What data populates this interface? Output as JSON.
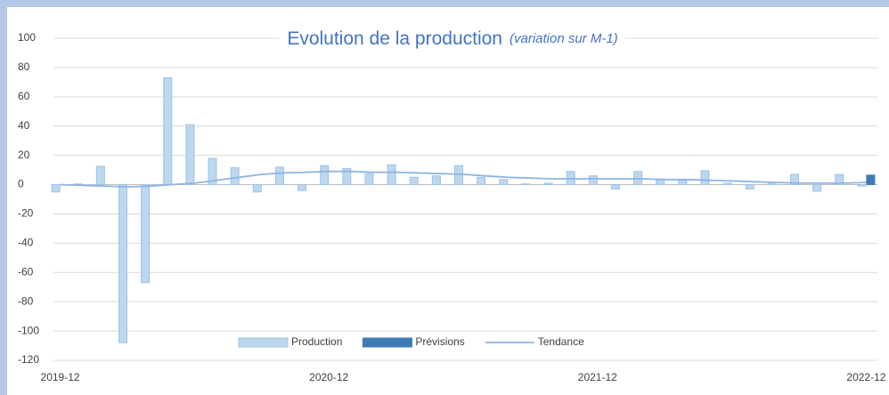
{
  "chart_data": {
    "type": "bar",
    "title": "Evolution de la production",
    "subtitle": "(variation sur M-1)",
    "categories": [
      "2019-12",
      null,
      null,
      null,
      null,
      null,
      null,
      null,
      null,
      null,
      null,
      null,
      "2020-12",
      null,
      null,
      null,
      null,
      null,
      null,
      null,
      null,
      null,
      null,
      null,
      "2021-12",
      null,
      null,
      null,
      null,
      null,
      null,
      null,
      null,
      null,
      null,
      null,
      "2022-12"
    ],
    "series": [
      {
        "name": "Production",
        "type": "bar",
        "color": "#bdd7ee",
        "values": [
          -5,
          0.5,
          12.5,
          -108,
          -67,
          73,
          41,
          18,
          11.5,
          -5,
          12,
          -4,
          13,
          11,
          7.5,
          13.5,
          5,
          6,
          13,
          5,
          3.5,
          0.5,
          1,
          9,
          6,
          -3,
          9,
          3.5,
          3,
          9.5,
          1,
          -3,
          1.5,
          7,
          -4.5,
          7,
          -1
        ]
      },
      {
        "name": "Prévisions",
        "type": "bar",
        "color": "#3f7ab5",
        "values": [
          null,
          null,
          null,
          null,
          null,
          null,
          null,
          null,
          null,
          null,
          null,
          null,
          null,
          null,
          null,
          null,
          null,
          null,
          null,
          null,
          null,
          null,
          null,
          null,
          null,
          null,
          null,
          null,
          null,
          null,
          null,
          null,
          null,
          null,
          null,
          null,
          6.5
        ]
      },
      {
        "name": "Tendance",
        "type": "line",
        "color": "#8eb4e3",
        "values": [
          0,
          -0.5,
          -1,
          -1.5,
          -1,
          0,
          1,
          3,
          5,
          7,
          8,
          8.5,
          9,
          9,
          8.5,
          8.5,
          8,
          7.5,
          7,
          6,
          5,
          4.5,
          4,
          4,
          4,
          4,
          4,
          3.5,
          3.5,
          3,
          2.5,
          2,
          1.5,
          1,
          1,
          1,
          1.5
        ]
      }
    ],
    "ylim": [
      -120,
      100
    ],
    "yticks": [
      -120,
      -100,
      -80,
      -60,
      -40,
      -20,
      0,
      20,
      40,
      60,
      80,
      100
    ],
    "grid": true,
    "legend": "bottom"
  }
}
